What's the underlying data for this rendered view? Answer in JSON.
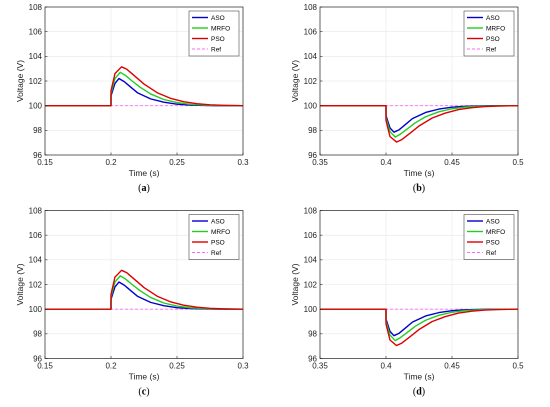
{
  "colors": {
    "aso": "#0000cc",
    "mrfo": "#22cc22",
    "pso": "#dd0000",
    "ref": "#ff66ff",
    "grid": "#e6e6e6"
  },
  "chart_data": [
    {
      "type": "line",
      "caption": "(a)",
      "xlabel": "Time (s)",
      "ylabel": "Voltage (V)",
      "xlim": [
        0.15,
        0.3
      ],
      "ylim": [
        96,
        108
      ],
      "xticks": [
        0.15,
        0.2,
        0.25,
        0.3
      ],
      "xtick_labels": [
        "0.15",
        "0.2",
        "0.25",
        "0.3"
      ],
      "yticks": [
        96,
        98,
        100,
        102,
        104,
        106,
        108
      ],
      "ytick_labels": [
        "96",
        "98",
        "100",
        "102",
        "104",
        "106",
        "108"
      ],
      "grid": true,
      "legend": "top-right",
      "series": [
        {
          "name": "ASO",
          "color": "#0000cc",
          "dashed": false,
          "x": [
            0.15,
            0.2,
            0.2,
            0.203,
            0.206,
            0.21,
            0.215,
            0.22,
            0.23,
            0.24,
            0.25,
            0.26,
            0.27,
            0.28,
            0.3
          ],
          "y": [
            100,
            100,
            100.8,
            101.8,
            102.2,
            101.95,
            101.5,
            101.05,
            100.55,
            100.28,
            100.12,
            100.05,
            100.02,
            100.0,
            100
          ]
        },
        {
          "name": "MRFO",
          "color": "#22cc22",
          "dashed": false,
          "x": [
            0.15,
            0.2,
            0.2,
            0.203,
            0.207,
            0.211,
            0.216,
            0.222,
            0.23,
            0.24,
            0.25,
            0.26,
            0.27,
            0.28,
            0.3
          ],
          "y": [
            100,
            100,
            101.0,
            102.2,
            102.7,
            102.45,
            102.0,
            101.5,
            100.95,
            100.5,
            100.25,
            100.11,
            100.05,
            100.02,
            100
          ]
        },
        {
          "name": "PSO",
          "color": "#dd0000",
          "dashed": false,
          "x": [
            0.15,
            0.2,
            0.2,
            0.203,
            0.208,
            0.212,
            0.218,
            0.225,
            0.235,
            0.245,
            0.255,
            0.265,
            0.275,
            0.285,
            0.3
          ],
          "y": [
            100,
            100,
            101.2,
            102.6,
            103.15,
            102.95,
            102.4,
            101.75,
            101.05,
            100.6,
            100.32,
            100.16,
            100.07,
            100.03,
            100
          ]
        },
        {
          "name": "Ref",
          "color": "#ff66ff",
          "dashed": true,
          "x": [
            0.15,
            0.3
          ],
          "y": [
            100,
            100
          ]
        }
      ]
    },
    {
      "type": "line",
      "caption": "(b)",
      "xlabel": "Time (s)",
      "ylabel": "Voltage (V)",
      "xlim": [
        0.35,
        0.5
      ],
      "ylim": [
        96,
        108
      ],
      "xticks": [
        0.35,
        0.4,
        0.45,
        0.5
      ],
      "xtick_labels": [
        "0.35",
        "0.4",
        "0.45",
        "0.5"
      ],
      "yticks": [
        96,
        98,
        100,
        102,
        104,
        106,
        108
      ],
      "ytick_labels": [
        "96",
        "98",
        "100",
        "102",
        "104",
        "106",
        "108"
      ],
      "grid": true,
      "legend": "top-right",
      "series": [
        {
          "name": "ASO",
          "color": "#0000cc",
          "dashed": false,
          "x": [
            0.35,
            0.4,
            0.4,
            0.403,
            0.406,
            0.41,
            0.415,
            0.42,
            0.43,
            0.44,
            0.45,
            0.46,
            0.47,
            0.48,
            0.5
          ],
          "y": [
            100,
            100,
            99.2,
            98.2,
            97.85,
            98.05,
            98.5,
            98.95,
            99.45,
            99.72,
            99.88,
            99.95,
            99.98,
            100.0,
            100
          ]
        },
        {
          "name": "MRFO",
          "color": "#22cc22",
          "dashed": false,
          "x": [
            0.35,
            0.4,
            0.4,
            0.403,
            0.407,
            0.411,
            0.416,
            0.422,
            0.43,
            0.44,
            0.45,
            0.46,
            0.47,
            0.48,
            0.5
          ],
          "y": [
            100,
            100,
            99.0,
            97.9,
            97.45,
            97.7,
            98.1,
            98.6,
            99.1,
            99.5,
            99.75,
            99.89,
            99.95,
            99.98,
            100
          ]
        },
        {
          "name": "PSO",
          "color": "#dd0000",
          "dashed": false,
          "x": [
            0.35,
            0.4,
            0.4,
            0.403,
            0.408,
            0.412,
            0.418,
            0.425,
            0.435,
            0.445,
            0.455,
            0.465,
            0.475,
            0.485,
            0.5
          ],
          "y": [
            100,
            100,
            98.8,
            97.5,
            97.05,
            97.25,
            97.75,
            98.35,
            99.0,
            99.4,
            99.68,
            99.84,
            99.93,
            99.97,
            100
          ]
        },
        {
          "name": "Ref",
          "color": "#ff66ff",
          "dashed": true,
          "x": [
            0.35,
            0.5
          ],
          "y": [
            100,
            100
          ]
        }
      ]
    },
    {
      "type": "line",
      "caption": "(c)",
      "xlabel": "Time (s)",
      "ylabel": "Voltage (V)",
      "xlim": [
        0.15,
        0.3
      ],
      "ylim": [
        96,
        108
      ],
      "xticks": [
        0.15,
        0.2,
        0.25,
        0.3
      ],
      "xtick_labels": [
        "0.15",
        "0.2",
        "0.25",
        "0.3"
      ],
      "yticks": [
        96,
        98,
        100,
        102,
        104,
        106,
        108
      ],
      "ytick_labels": [
        "96",
        "98",
        "100",
        "102",
        "104",
        "106",
        "108"
      ],
      "grid": true,
      "legend": "top-right",
      "series": [
        {
          "name": "ASO",
          "color": "#0000cc",
          "dashed": false,
          "x": [
            0.15,
            0.2,
            0.2,
            0.203,
            0.206,
            0.21,
            0.215,
            0.22,
            0.23,
            0.24,
            0.25,
            0.26,
            0.27,
            0.28,
            0.3
          ],
          "y": [
            100,
            100,
            100.8,
            101.8,
            102.2,
            101.95,
            101.5,
            101.05,
            100.55,
            100.28,
            100.12,
            100.05,
            100.02,
            100.0,
            100
          ]
        },
        {
          "name": "MRFO",
          "color": "#22cc22",
          "dashed": false,
          "x": [
            0.15,
            0.2,
            0.2,
            0.203,
            0.207,
            0.211,
            0.216,
            0.222,
            0.23,
            0.24,
            0.25,
            0.26,
            0.27,
            0.28,
            0.3
          ],
          "y": [
            100,
            100,
            101.0,
            102.2,
            102.7,
            102.45,
            102.0,
            101.5,
            100.95,
            100.5,
            100.25,
            100.11,
            100.05,
            100.02,
            100
          ]
        },
        {
          "name": "PSO",
          "color": "#dd0000",
          "dashed": false,
          "x": [
            0.15,
            0.2,
            0.2,
            0.203,
            0.208,
            0.212,
            0.218,
            0.225,
            0.235,
            0.245,
            0.255,
            0.265,
            0.275,
            0.285,
            0.3
          ],
          "y": [
            100,
            100,
            101.2,
            102.6,
            103.15,
            102.95,
            102.4,
            101.75,
            101.05,
            100.6,
            100.32,
            100.16,
            100.07,
            100.03,
            100
          ]
        },
        {
          "name": "Ref",
          "color": "#ff66ff",
          "dashed": true,
          "x": [
            0.15,
            0.3
          ],
          "y": [
            100,
            100
          ]
        }
      ]
    },
    {
      "type": "line",
      "caption": "(d)",
      "xlabel": "Time (s)",
      "ylabel": "Voltage (V)",
      "xlim": [
        0.35,
        0.5
      ],
      "ylim": [
        96,
        108
      ],
      "xticks": [
        0.35,
        0.4,
        0.45,
        0.5
      ],
      "xtick_labels": [
        "0.35",
        "0.4",
        "0.45",
        "0.5"
      ],
      "yticks": [
        96,
        98,
        100,
        102,
        104,
        106,
        108
      ],
      "ytick_labels": [
        "96",
        "98",
        "100",
        "102",
        "104",
        "106",
        "108"
      ],
      "grid": true,
      "legend": "top-right",
      "series": [
        {
          "name": "ASO",
          "color": "#0000cc",
          "dashed": false,
          "x": [
            0.35,
            0.4,
            0.4,
            0.403,
            0.406,
            0.41,
            0.415,
            0.42,
            0.43,
            0.44,
            0.45,
            0.46,
            0.47,
            0.48,
            0.5
          ],
          "y": [
            100,
            100,
            99.2,
            98.2,
            97.85,
            98.05,
            98.5,
            98.95,
            99.45,
            99.72,
            99.88,
            99.95,
            99.98,
            100.0,
            100
          ]
        },
        {
          "name": "MRFO",
          "color": "#22cc22",
          "dashed": false,
          "x": [
            0.35,
            0.4,
            0.4,
            0.403,
            0.407,
            0.411,
            0.416,
            0.422,
            0.43,
            0.44,
            0.45,
            0.46,
            0.47,
            0.48,
            0.5
          ],
          "y": [
            100,
            100,
            99.0,
            97.9,
            97.45,
            97.7,
            98.1,
            98.6,
            99.1,
            99.5,
            99.75,
            99.89,
            99.95,
            99.98,
            100
          ]
        },
        {
          "name": "PSO",
          "color": "#dd0000",
          "dashed": false,
          "x": [
            0.35,
            0.4,
            0.4,
            0.403,
            0.408,
            0.412,
            0.418,
            0.425,
            0.435,
            0.445,
            0.455,
            0.465,
            0.475,
            0.485,
            0.5
          ],
          "y": [
            100,
            100,
            98.8,
            97.5,
            97.05,
            97.25,
            97.75,
            98.35,
            99.0,
            99.4,
            99.68,
            99.84,
            99.93,
            99.97,
            100
          ]
        },
        {
          "name": "Ref",
          "color": "#ff66ff",
          "dashed": true,
          "x": [
            0.35,
            0.5
          ],
          "y": [
            100,
            100
          ]
        }
      ]
    }
  ]
}
